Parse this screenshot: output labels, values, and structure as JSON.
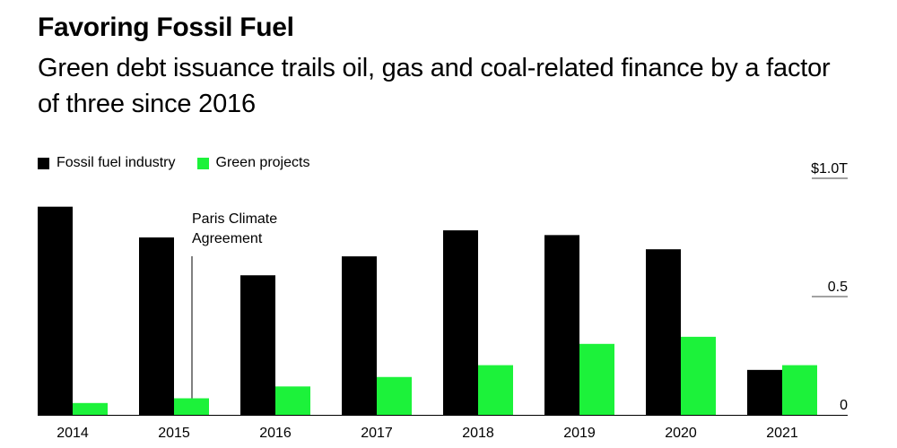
{
  "header": {
    "title": "Favoring Fossil Fuel",
    "subtitle": "Green debt issuance trails oil, gas and coal-related finance by a factor of three since 2016"
  },
  "legend": {
    "items": [
      {
        "label": "Fossil fuel industry",
        "color": "#000000"
      },
      {
        "label": "Green projects",
        "color": "#1CF23A"
      }
    ]
  },
  "annotation": {
    "line1": "Paris Climate",
    "line2": "Agreement",
    "year": "2015"
  },
  "chart_data": {
    "type": "bar",
    "title": "Favoring Fossil Fuel",
    "subtitle": "Green debt issuance trails oil, gas and coal-related finance by a factor of three since 2016",
    "xlabel": "",
    "ylabel": "",
    "categories": [
      "2014",
      "2015",
      "2016",
      "2017",
      "2018",
      "2019",
      "2020",
      "2021"
    ],
    "series": [
      {
        "name": "Fossil fuel industry",
        "color": "#000000",
        "values": [
          0.88,
          0.75,
          0.59,
          0.67,
          0.78,
          0.76,
          0.7,
          0.19
        ]
      },
      {
        "name": "Green projects",
        "color": "#1CF23A",
        "values": [
          0.05,
          0.07,
          0.12,
          0.16,
          0.21,
          0.3,
          0.33,
          0.21
        ]
      }
    ],
    "ylim": [
      0,
      1.0
    ],
    "yticks": [
      {
        "value": 0,
        "label": "0"
      },
      {
        "value": 0.5,
        "label": "0.5"
      },
      {
        "value": 1.0,
        "label": "$1.0T"
      }
    ],
    "legend_position": "top-left",
    "grid": true
  }
}
